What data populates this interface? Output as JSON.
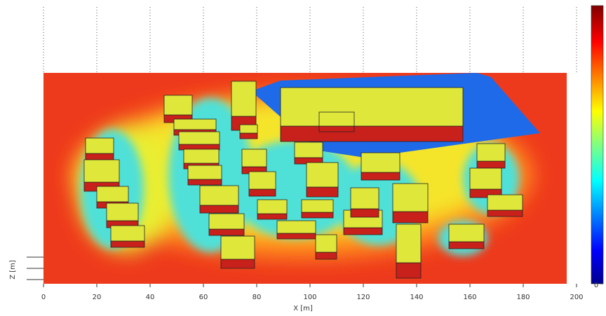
{
  "chart_data": {
    "type": "heatmap",
    "xlabel": "X [m]",
    "ylabel": "Z [m]",
    "xlim": [
      0,
      200
    ],
    "xticks": [
      0,
      20,
      40,
      60,
      80,
      100,
      120,
      140,
      160,
      180,
      200
    ],
    "colorbar_ticks": [
      0
    ],
    "grid": true
  }
}
